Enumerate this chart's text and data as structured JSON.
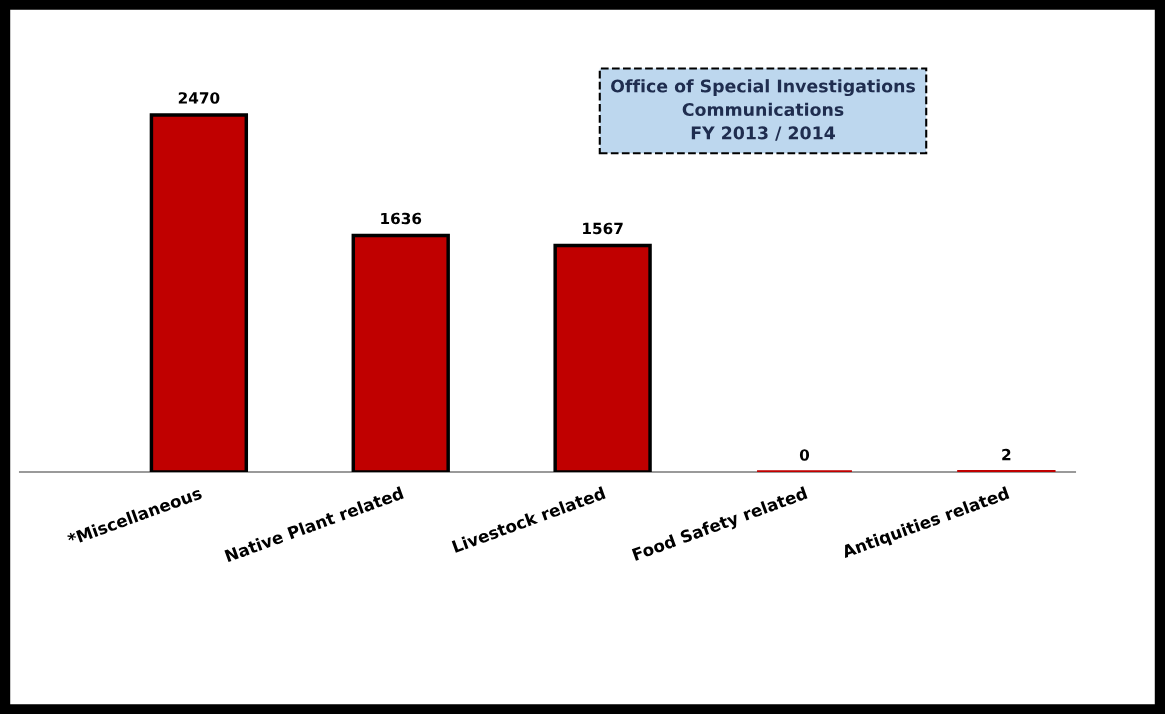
{
  "chart_data": {
    "type": "bar",
    "title": "Office of Special Investigations\nCommunications\nFY 2013 / 2014",
    "categories": [
      "*Miscellaneous",
      "Native Plant related",
      "Livestock related",
      "Food Safety related",
      "Antiquities related"
    ],
    "values": [
      2470,
      1636,
      1567,
      0,
      2
    ],
    "color": "#c00000",
    "data_labels": true
  }
}
